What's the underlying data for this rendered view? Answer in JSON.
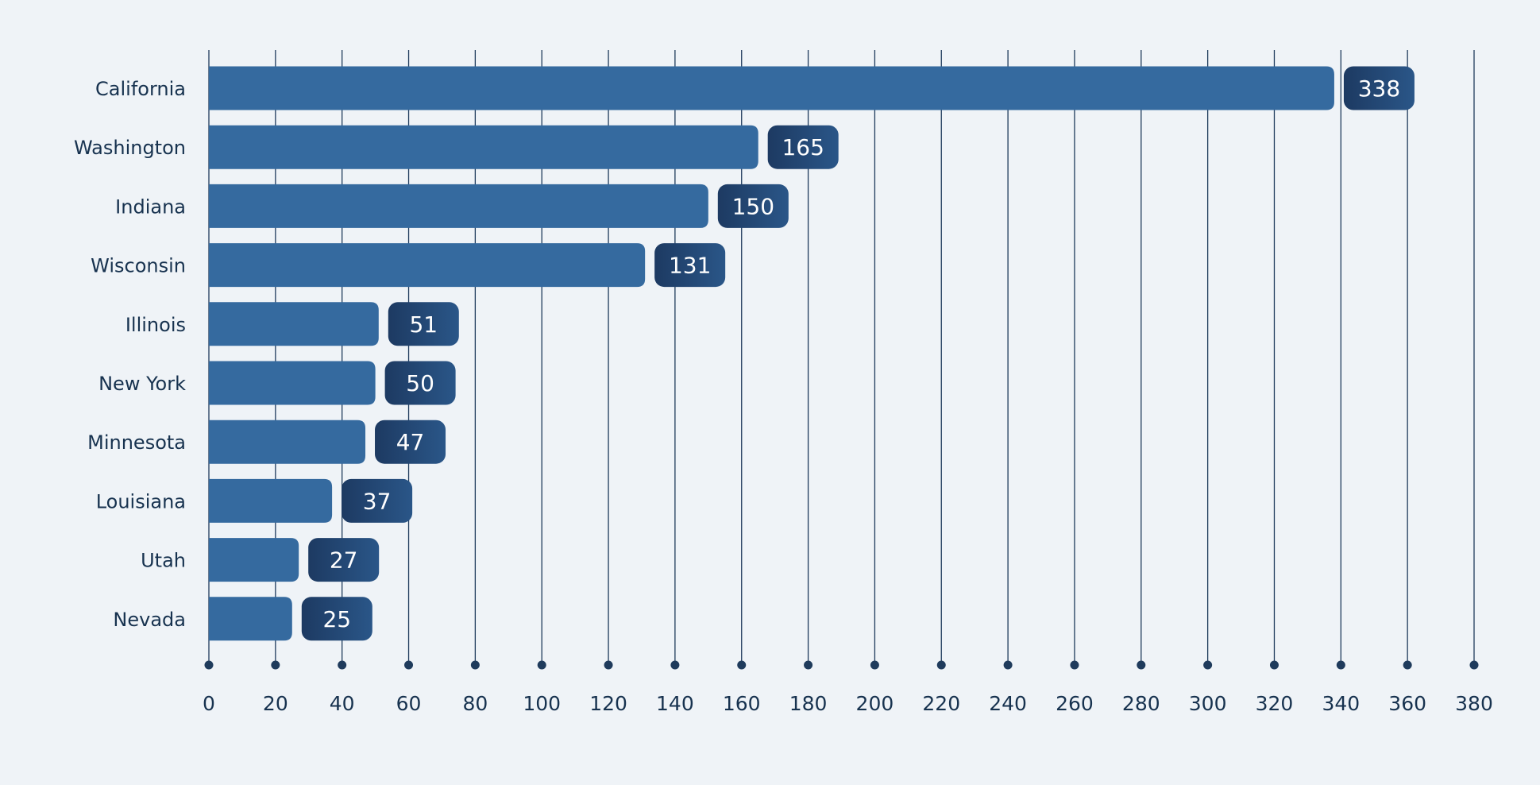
{
  "chart_data": {
    "type": "bar",
    "orientation": "horizontal",
    "categories": [
      "California",
      "Washington",
      "Indiana",
      "Wisconsin",
      "Illinois",
      "New York",
      "Minnesota",
      "Louisiana",
      "Utah",
      "Nevada"
    ],
    "values": [
      338,
      165,
      150,
      131,
      51,
      50,
      47,
      37,
      27,
      25
    ],
    "value_labels": [
      "338",
      "165",
      "150",
      "131",
      "51",
      "50",
      "47",
      "37",
      "27",
      "25"
    ],
    "x_ticks": [
      "0",
      "20",
      "40",
      "60",
      "80",
      "100",
      "120",
      "140",
      "160",
      "180",
      "200",
      "220",
      "240",
      "260",
      "280",
      "300",
      "320",
      "340",
      "360",
      "380"
    ],
    "xlim": [
      0,
      380
    ],
    "title": "",
    "xlabel": "",
    "ylabel": "",
    "grid": "vertical",
    "legend": "none"
  },
  "colors": {
    "background": "#eff3f7",
    "bar": "#356a9f",
    "label_box_dark": "#1d3a62",
    "label_box_light": "#2a5688",
    "label_text": "#ffffff",
    "grid_line": "#1f3b5c",
    "axis_text": "#17324f",
    "category_text": "#17324f"
  }
}
